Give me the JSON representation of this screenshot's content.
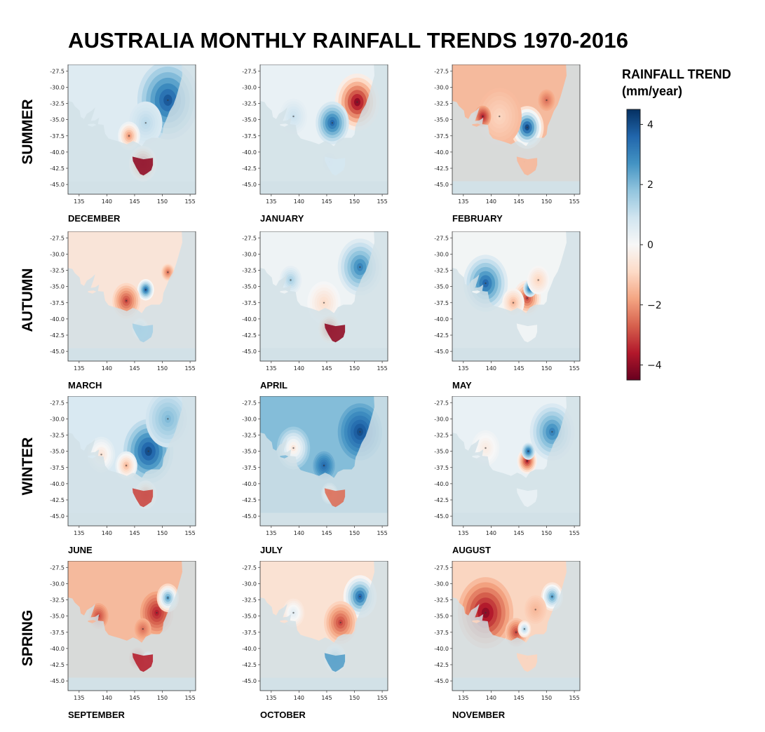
{
  "title": "AUSTRALIA MONTHLY RAINFALL TRENDS 1970-2016",
  "legend": {
    "title_line1": "RAINFALL TREND",
    "title_line2": "(mm/year)",
    "ticks": [
      "4",
      "2",
      "0",
      "−2",
      "−4"
    ],
    "range": [
      -4.5,
      4.5
    ],
    "colors": [
      "#67001f",
      "#b2182b",
      "#d6604d",
      "#f4a582",
      "#fddbc7",
      "#f7f7f7",
      "#d1e5f0",
      "#92c5de",
      "#4393c3",
      "#2166ac",
      "#053061"
    ]
  },
  "axes": {
    "x_ticks": [
      "135",
      "140",
      "145",
      "150",
      "155"
    ],
    "y_ticks": [
      "-27.5",
      "-30.0",
      "-32.5",
      "-35.0",
      "-37.5",
      "-40.0",
      "-42.5",
      "-45.0"
    ]
  },
  "seasons": [
    {
      "label": "SUMMER",
      "months": [
        {
          "name": "DECEMBER",
          "background": 0.6,
          "features": [
            {
              "lon": 151.0,
              "lat": -32.0,
              "value": 3.8,
              "radius": 5.5
            },
            {
              "lon": 147.0,
              "lat": -35.5,
              "value": 1.2,
              "radius": 3
            },
            {
              "lon": 144.0,
              "lat": -37.5,
              "value": -2.0,
              "radius": 2
            },
            {
              "lon": 146.5,
              "lat": -41.8,
              "value": -4.0,
              "radius": 2.5
            }
          ]
        },
        {
          "name": "JANUARY",
          "background": 0.3,
          "features": [
            {
              "lon": 150.5,
              "lat": -32.3,
              "value": -4.0,
              "radius": 4
            },
            {
              "lon": 146.0,
              "lat": -35.5,
              "value": 3.5,
              "radius": 3
            },
            {
              "lon": 139.0,
              "lat": -34.5,
              "value": 1.0,
              "radius": 2.5
            },
            {
              "lon": 145.5,
              "lat": -41.5,
              "value": 0.8,
              "radius": 1.5
            }
          ]
        },
        {
          "name": "FEBRUARY",
          "background": -1.5,
          "features": [
            {
              "lon": 146.5,
              "lat": -36.2,
              "value": 4.0,
              "radius": 3
            },
            {
              "lon": 141.5,
              "lat": -34.5,
              "value": -1.0,
              "radius": 4
            },
            {
              "lon": 150.0,
              "lat": -32.0,
              "value": -2.5,
              "radius": 1.5
            },
            {
              "lon": 138.5,
              "lat": -34.5,
              "value": -3.5,
              "radius": 1.5
            },
            {
              "lon": 146.0,
              "lat": -41.5,
              "value": -1.5,
              "radius": 1.5
            }
          ]
        }
      ]
    },
    {
      "label": "AUTUMN",
      "months": [
        {
          "name": "MARCH",
          "background": -0.6,
          "features": [
            {
              "lon": 147.0,
              "lat": -35.5,
              "value": 3.5,
              "radius": 1.5
            },
            {
              "lon": 143.5,
              "lat": -37.2,
              "value": -3.0,
              "radius": 2.5
            },
            {
              "lon": 151.0,
              "lat": -32.8,
              "value": -2.5,
              "radius": 1.2
            },
            {
              "lon": 146.0,
              "lat": -41.5,
              "value": 1.5,
              "radius": 1.5
            }
          ]
        },
        {
          "name": "APRIL",
          "background": 0.2,
          "features": [
            {
              "lon": 151.0,
              "lat": -32.0,
              "value": 3.0,
              "radius": 4
            },
            {
              "lon": 138.5,
              "lat": -34.0,
              "value": 1.5,
              "radius": 2
            },
            {
              "lon": 144.5,
              "lat": -37.5,
              "value": -0.8,
              "radius": 3
            },
            {
              "lon": 145.5,
              "lat": -41.5,
              "value": -4.0,
              "radius": 2
            }
          ]
        },
        {
          "name": "MAY",
          "background": 0.1,
          "features": [
            {
              "lon": 139.0,
              "lat": -34.5,
              "value": 3.5,
              "radius": 4
            },
            {
              "lon": 146.5,
              "lat": -36.8,
              "value": -3.0,
              "radius": 2.5
            },
            {
              "lon": 147.0,
              "lat": -35.3,
              "value": 3.5,
              "radius": 1.2
            },
            {
              "lon": 144.0,
              "lat": -37.5,
              "value": -1.5,
              "radius": 2
            },
            {
              "lon": 148.5,
              "lat": -34.0,
              "value": -1.0,
              "radius": 2
            }
          ]
        }
      ]
    },
    {
      "label": "WINTER",
      "months": [
        {
          "name": "JUNE",
          "background": 0.7,
          "features": [
            {
              "lon": 147.5,
              "lat": -35.0,
              "value": 4.0,
              "radius": 4.5
            },
            {
              "lon": 151.0,
              "lat": -30.0,
              "value": 2.0,
              "radius": 4
            },
            {
              "lon": 143.5,
              "lat": -37.2,
              "value": -1.5,
              "radius": 2
            },
            {
              "lon": 147.0,
              "lat": -41.7,
              "value": -3.0,
              "radius": 2
            },
            {
              "lon": 139.0,
              "lat": -35.5,
              "value": -0.6,
              "radius": 2.5
            }
          ]
        },
        {
          "name": "JULY",
          "background": 2.0,
          "features": [
            {
              "lon": 151.0,
              "lat": -32.0,
              "value": 4.0,
              "radius": 4
            },
            {
              "lon": 144.5,
              "lat": -37.2,
              "value": 3.5,
              "radius": 2
            },
            {
              "lon": 139.0,
              "lat": -34.5,
              "value": -0.5,
              "radius": 3
            },
            {
              "lon": 145.5,
              "lat": -41.5,
              "value": -2.5,
              "radius": 1.5
            }
          ]
        },
        {
          "name": "AUGUST",
          "background": 0.3,
          "features": [
            {
              "lon": 151.0,
              "lat": -32.0,
              "value": 3.0,
              "radius": 4
            },
            {
              "lon": 146.5,
              "lat": -36.5,
              "value": -3.5,
              "radius": 1.8
            },
            {
              "lon": 146.7,
              "lat": -35.0,
              "value": 3.5,
              "radius": 1.2
            },
            {
              "lon": 139.0,
              "lat": -34.5,
              "value": -0.4,
              "radius": 2.5
            }
          ]
        }
      ]
    },
    {
      "label": "SPRING",
      "months": [
        {
          "name": "SEPTEMBER",
          "background": -1.5,
          "features": [
            {
              "lon": 149.0,
              "lat": -34.5,
              "value": -3.5,
              "radius": 3
            },
            {
              "lon": 151.0,
              "lat": -32.2,
              "value": 2.5,
              "radius": 2
            },
            {
              "lon": 138.5,
              "lat": -35.0,
              "value": -3.0,
              "radius": 1.8
            },
            {
              "lon": 146.5,
              "lat": -37.0,
              "value": -2.5,
              "radius": 1.5
            },
            {
              "lon": 145.5,
              "lat": -41.5,
              "value": -3.5,
              "radius": 1.5
            },
            {
              "lon": 147.5,
              "lat": -41.5,
              "value": 2.0,
              "radius": 1
            }
          ]
        },
        {
          "name": "OCTOBER",
          "background": -0.7,
          "features": [
            {
              "lon": 151.0,
              "lat": -32.0,
              "value": 3.5,
              "radius": 3
            },
            {
              "lon": 147.5,
              "lat": -36.0,
              "value": -3.0,
              "radius": 3
            },
            {
              "lon": 146.5,
              "lat": -41.5,
              "value": 2.5,
              "radius": 2
            },
            {
              "lon": 139.0,
              "lat": -34.5,
              "value": 0.5,
              "radius": 2
            }
          ]
        },
        {
          "name": "NOVEMBER",
          "background": -1.0,
          "features": [
            {
              "lon": 139.0,
              "lat": -34.5,
              "value": -4.0,
              "radius": 5
            },
            {
              "lon": 144.5,
              "lat": -37.5,
              "value": -3.0,
              "radius": 2
            },
            {
              "lon": 151.0,
              "lat": -32.0,
              "value": 2.5,
              "radius": 2
            },
            {
              "lon": 146.0,
              "lat": -37.0,
              "value": 1.5,
              "radius": 1.2
            },
            {
              "lon": 148.0,
              "lat": -34.0,
              "value": -1.5,
              "radius": 2
            },
            {
              "lon": 146.5,
              "lat": -41.5,
              "value": -1.0,
              "radius": 1.5
            }
          ]
        }
      ]
    }
  ]
}
